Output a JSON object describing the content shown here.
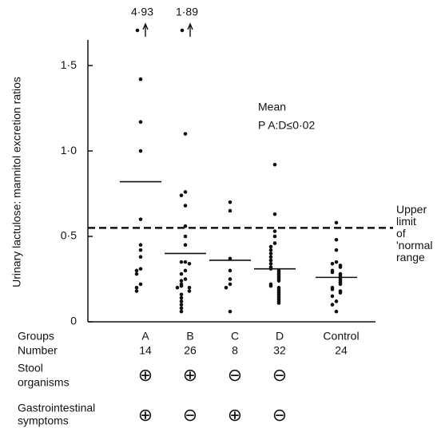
{
  "chart_data": {
    "type": "dot",
    "y_label": "Urinary lactulose: mannitol excretion ratios",
    "ylim": [
      0,
      1.65
    ],
    "yticks": [
      0,
      {
        "value": 0.5,
        "label": "0·5"
      },
      {
        "value": 1.0,
        "label": "1·0"
      },
      {
        "value": 1.5,
        "label": "1·5"
      }
    ],
    "categories": [
      "A",
      "B",
      "C",
      "D",
      "Control"
    ],
    "counts": [
      14,
      26,
      8,
      32,
      24
    ],
    "values": [
      [
        1.42,
        1.17,
        1.0,
        0.6,
        0.45,
        0.42,
        0.38,
        0.31,
        0.3,
        0.28,
        0.22,
        0.2,
        0.18
      ],
      [
        1.1,
        0.76,
        0.74,
        0.68,
        0.56,
        0.5,
        0.45,
        0.35,
        0.35,
        0.34,
        0.3,
        0.28,
        0.25,
        0.24,
        0.22,
        0.21,
        0.2,
        0.2,
        0.18,
        0.16,
        0.14,
        0.12,
        0.1,
        0.08,
        0.06
      ],
      [
        0.7,
        0.65,
        0.37,
        0.3,
        0.25,
        0.22,
        0.2,
        0.06
      ],
      [
        0.92,
        0.63,
        0.53,
        0.5,
        0.46,
        0.44,
        0.42,
        0.4,
        0.38,
        0.36,
        0.34,
        0.32,
        0.31,
        0.3,
        0.29,
        0.28,
        0.27,
        0.26,
        0.25,
        0.24,
        0.22,
        0.21,
        0.2,
        0.19,
        0.18,
        0.17,
        0.16,
        0.15,
        0.14,
        0.13,
        0.12,
        0.11
      ],
      [
        0.58,
        0.48,
        0.42,
        0.35,
        0.34,
        0.33,
        0.32,
        0.3,
        0.29,
        0.28,
        0.27,
        0.26,
        0.25,
        0.24,
        0.23,
        0.22,
        0.2,
        0.19,
        0.18,
        0.17,
        0.15,
        0.12,
        0.1,
        0.06
      ]
    ],
    "offscale": [
      {
        "value": 4.93,
        "label": "4·93"
      },
      {
        "value": 1.89,
        "label": "1·89"
      },
      null,
      null,
      null
    ],
    "means": [
      0.82,
      0.4,
      0.36,
      0.31,
      0.26
    ],
    "color": "#111111",
    "reference_line": {
      "value": 0.55,
      "label": [
        "Upper",
        "limit",
        "of",
        "'normal",
        "range"
      ]
    },
    "annotations": [
      "Mean",
      "P A:D≤0·02"
    ],
    "groups_label": "Groups",
    "number_label": "Number",
    "stool_label": [
      "Stool",
      "organisms"
    ],
    "stool": [
      "⊕",
      "⊕",
      "⊖",
      "⊖",
      null
    ],
    "symptoms_label": [
      "Gastrointestinal",
      "symptoms"
    ],
    "symptoms": [
      "⊕",
      "⊖",
      "⊕",
      "⊖",
      null
    ]
  }
}
